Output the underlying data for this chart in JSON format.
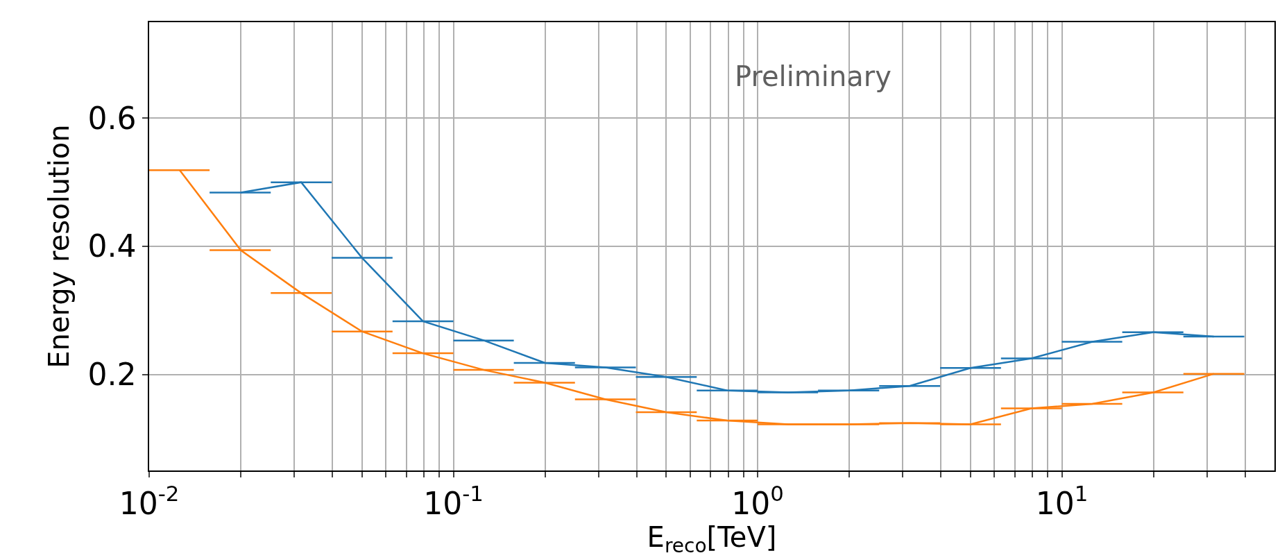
{
  "chart_data": {
    "type": "line",
    "xlabel": "E$_{reco}$[TeV]",
    "ylabel": "Energy resolution",
    "annotations": [
      "Preliminary"
    ],
    "log": "x",
    "grid": true,
    "marker": "none",
    "line_style": "solid",
    "xlim": [
      0.01,
      50
    ],
    "ylim": [
      0.05,
      0.75
    ],
    "xticks": [
      {
        "value": 0.01,
        "label": "10$^{-2}$"
      },
      {
        "value": 0.02,
        "label": null
      },
      {
        "value": 0.03,
        "label": null
      },
      {
        "value": 0.04,
        "label": null
      },
      {
        "value": 0.05,
        "label": null
      },
      {
        "value": 0.06,
        "label": null
      },
      {
        "value": 0.07,
        "label": null
      },
      {
        "value": 0.08,
        "label": null
      },
      {
        "value": 0.09,
        "label": null
      },
      {
        "value": 0.1,
        "label": "10$^{-1}$"
      },
      {
        "value": 0.2,
        "label": null
      },
      {
        "value": 0.3,
        "label": null
      },
      {
        "value": 0.4,
        "label": null
      },
      {
        "value": 0.5,
        "label": null
      },
      {
        "value": 0.6,
        "label": null
      },
      {
        "value": 0.7,
        "label": null
      },
      {
        "value": 0.8,
        "label": null
      },
      {
        "value": 0.9,
        "label": null
      },
      {
        "value": 1,
        "label": "10$^{0}$"
      },
      {
        "value": 2,
        "label": null
      },
      {
        "value": 3,
        "label": null
      },
      {
        "value": 4,
        "label": null
      },
      {
        "value": 5,
        "label": null
      },
      {
        "value": 6,
        "label": null
      },
      {
        "value": 7,
        "label": null
      },
      {
        "value": 8,
        "label": null
      },
      {
        "value": 9,
        "label": null
      },
      {
        "value": 10,
        "label": "10$^{1}$"
      },
      {
        "value": 20,
        "label": null
      },
      {
        "value": 30,
        "label": null
      },
      {
        "value": 40,
        "label": null
      }
    ],
    "yticks": [
      0.2,
      0.4,
      0.6
    ],
    "series": [
      {
        "color": "#1f77b4",
        "x": [
          0.02,
          0.0316,
          0.0501,
          0.0794,
          0.126,
          0.2,
          0.316,
          0.501,
          0.794,
          1.26,
          2,
          3.16,
          5.01,
          7.94,
          12.6,
          20,
          31.6
        ],
        "values": [
          0.484,
          0.5,
          0.382,
          0.283,
          0.253,
          0.218,
          0.211,
          0.196,
          0.175,
          0.172,
          0.175,
          0.182,
          0.21,
          0.225,
          0.251,
          0.266,
          0.259
        ],
        "xerrors": [
          [
            0.0158,
            0.0251
          ],
          [
            0.0251,
            0.0398
          ],
          [
            0.0398,
            0.0631
          ],
          [
            0.0631,
            0.1
          ],
          [
            0.1,
            0.158
          ],
          [
            0.158,
            0.251
          ],
          [
            0.251,
            0.398
          ],
          [
            0.398,
            0.631
          ],
          [
            0.631,
            1
          ],
          [
            1,
            1.58
          ],
          [
            1.58,
            2.51
          ],
          [
            2.51,
            3.98
          ],
          [
            3.98,
            6.31
          ],
          [
            6.31,
            10
          ],
          [
            10,
            15.8
          ],
          [
            15.8,
            25.1
          ],
          [
            25.1,
            39.8
          ]
        ]
      },
      {
        "color": "#ff7f0e",
        "x": [
          0.0126,
          0.02,
          0.0316,
          0.0501,
          0.0794,
          0.126,
          0.2,
          0.316,
          0.501,
          0.794,
          1.26,
          2,
          3.16,
          5.01,
          7.94,
          12.6,
          20,
          31.6
        ],
        "values": [
          0.519,
          0.394,
          0.327,
          0.267,
          0.233,
          0.207,
          0.187,
          0.161,
          0.141,
          0.128,
          0.122,
          0.122,
          0.124,
          0.122,
          0.147,
          0.154,
          0.172,
          0.201
        ],
        "xerrors": [
          [
            0.01,
            0.0158
          ],
          [
            0.0158,
            0.0251
          ],
          [
            0.0251,
            0.0398
          ],
          [
            0.0398,
            0.0631
          ],
          [
            0.0631,
            0.1
          ],
          [
            0.1,
            0.158
          ],
          [
            0.158,
            0.251
          ],
          [
            0.251,
            0.398
          ],
          [
            0.398,
            0.631
          ],
          [
            0.631,
            1
          ],
          [
            1,
            1.58
          ],
          [
            1.58,
            2.51
          ],
          [
            2.51,
            3.98
          ],
          [
            3.98,
            6.31
          ],
          [
            6.31,
            10
          ],
          [
            10,
            15.8
          ],
          [
            15.8,
            25.1
          ],
          [
            25.1,
            39.8
          ]
        ]
      }
    ]
  }
}
